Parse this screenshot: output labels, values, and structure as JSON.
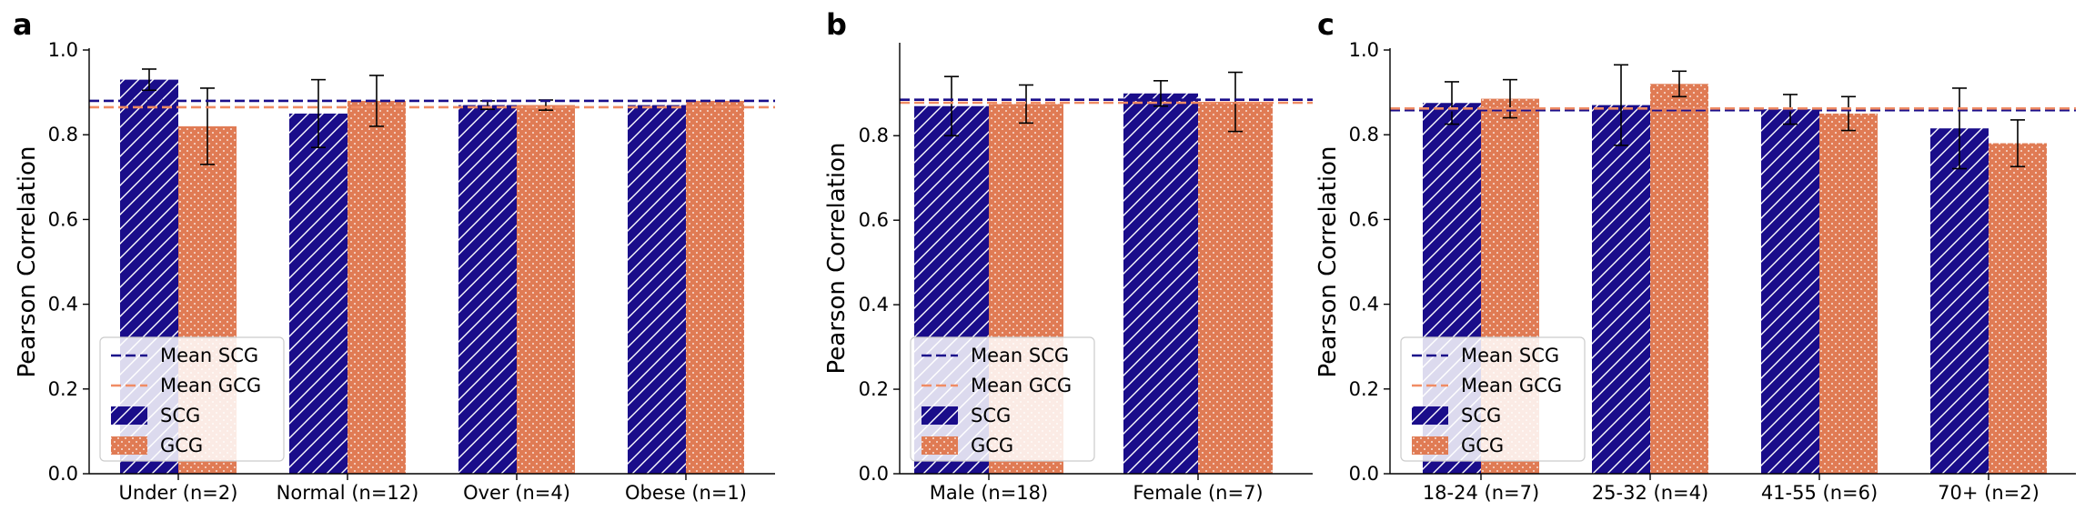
{
  "chart_data": [
    {
      "panel_label": "a",
      "type": "bar",
      "categories": [
        "Under (n=2)",
        "Normal (n=12)",
        "Over (n=4)",
        "Obese (n=1)"
      ],
      "series": [
        {
          "name": "SCG",
          "values": [
            0.93,
            0.85,
            0.87,
            0.87
          ],
          "errors": [
            0.025,
            0.08,
            0.01,
            0.0
          ]
        },
        {
          "name": "GCG",
          "values": [
            0.82,
            0.88,
            0.87,
            0.88
          ],
          "errors": [
            0.09,
            0.06,
            0.012,
            0.0
          ]
        }
      ],
      "means": [
        {
          "name": "Mean SCG",
          "value": 0.88
        },
        {
          "name": "Mean GCG",
          "value": 0.865
        }
      ],
      "ylabel": "Pearson Correlation",
      "ylim": [
        0,
        1.0
      ],
      "yticks": [
        "0.0",
        "0.2",
        "0.4",
        "0.6",
        "0.8",
        "1.0"
      ],
      "legend": [
        "Mean SCG",
        "Mean GCG",
        "SCG",
        "GCG"
      ],
      "legend_position": "lower-left"
    },
    {
      "panel_label": "b",
      "type": "bar",
      "categories": [
        "Male (n=18)",
        "Female (n=7)"
      ],
      "series": [
        {
          "name": "SCG",
          "values": [
            0.87,
            0.9
          ],
          "errors": [
            0.07,
            0.03
          ]
        },
        {
          "name": "GCG",
          "values": [
            0.875,
            0.88
          ],
          "errors": [
            0.045,
            0.07
          ]
        }
      ],
      "means": [
        {
          "name": "Mean SCG",
          "value": 0.885
        },
        {
          "name": "Mean GCG",
          "value": 0.878
        }
      ],
      "ylabel": "Pearson Correlation",
      "ylim": [
        0,
        1.0
      ],
      "yticks": [
        "0.0",
        "0.2",
        "0.4",
        "0.6",
        "0.8"
      ],
      "legend": [
        "Mean SCG",
        "Mean GCG",
        "SCG",
        "GCG"
      ],
      "legend_position": "lower-left"
    },
    {
      "panel_label": "c",
      "type": "bar",
      "categories": [
        "18-24 (n=7)",
        "25-32 (n=4)",
        "41-55 (n=6)",
        "70+ (n=2)"
      ],
      "series": [
        {
          "name": "SCG",
          "values": [
            0.875,
            0.87,
            0.86,
            0.815
          ],
          "errors": [
            0.05,
            0.095,
            0.035,
            0.095
          ]
        },
        {
          "name": "GCG",
          "values": [
            0.885,
            0.92,
            0.85,
            0.78
          ],
          "errors": [
            0.045,
            0.03,
            0.04,
            0.055
          ]
        }
      ],
      "means": [
        {
          "name": "Mean SCG",
          "value": 0.858
        },
        {
          "name": "Mean GCG",
          "value": 0.862
        }
      ],
      "ylabel": "Pearson Correlation",
      "ylim": [
        0,
        1.0
      ],
      "yticks": [
        "0.0",
        "0.2",
        "0.4",
        "0.6",
        "0.8",
        "1.0"
      ],
      "legend": [
        "Mean SCG",
        "Mean GCG",
        "SCG",
        "GCG"
      ],
      "legend_position": "lower-left"
    }
  ],
  "colors": {
    "scg": "#1a0d8a",
    "gcg": "#e07b54",
    "mean_scg": "#1a0d8a",
    "mean_gcg": "#f08c64"
  }
}
